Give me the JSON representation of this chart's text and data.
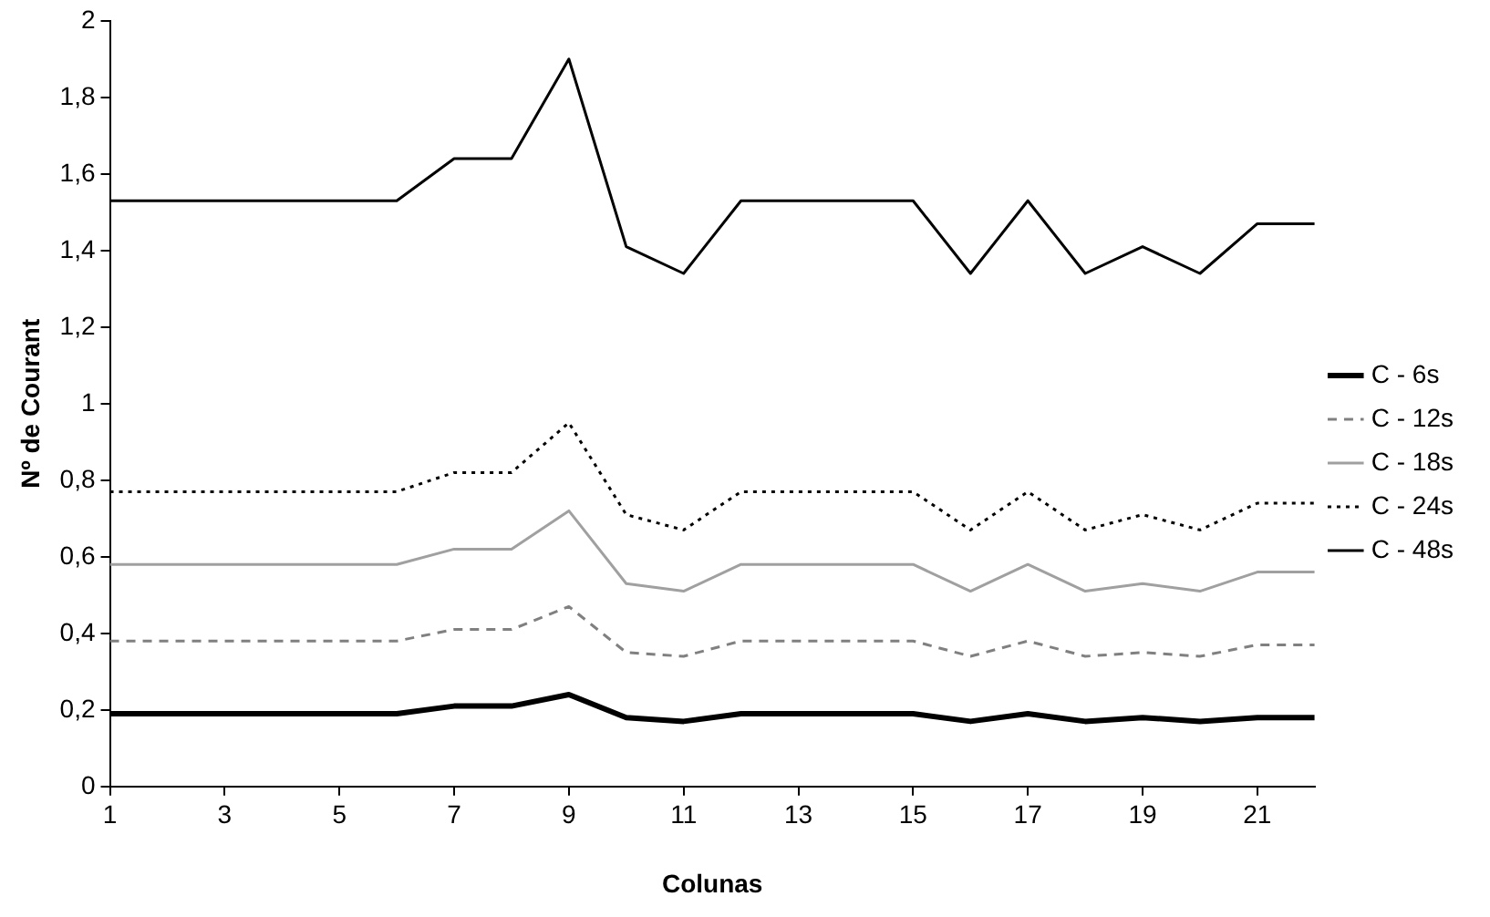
{
  "chart_data": {
    "type": "line",
    "xlabel": "Colunas",
    "ylabel": "Nº de Courant",
    "x": [
      1,
      2,
      3,
      4,
      5,
      6,
      7,
      8,
      9,
      10,
      11,
      12,
      13,
      14,
      15,
      16,
      17,
      18,
      19,
      20,
      21,
      22
    ],
    "xlim": [
      1,
      22
    ],
    "xticks": [
      1,
      3,
      5,
      7,
      9,
      11,
      13,
      15,
      17,
      19,
      21
    ],
    "ylim": [
      0,
      2
    ],
    "yticks": [
      0,
      {
        "value": 0.2,
        "label": "0,2"
      },
      {
        "value": 0.4,
        "label": "0,4"
      },
      {
        "value": 0.6,
        "label": "0,6"
      },
      {
        "value": 0.8,
        "label": "0,8"
      },
      1,
      {
        "value": 1.2,
        "label": "1,2"
      },
      {
        "value": 1.4,
        "label": "1,4"
      },
      {
        "value": 1.6,
        "label": "1,6"
      },
      {
        "value": 1.8,
        "label": "1,8"
      },
      2
    ],
    "grid": false,
    "legend": "right",
    "marker": "none",
    "series": [
      {
        "name": "C - 6s",
        "color": "#000000",
        "line_style": "solid",
        "values": [
          0.19,
          0.19,
          0.19,
          0.19,
          0.19,
          0.19,
          0.21,
          0.21,
          0.24,
          0.18,
          0.17,
          0.19,
          0.19,
          0.19,
          0.19,
          0.17,
          0.19,
          0.17,
          0.18,
          0.17,
          0.18,
          0.18
        ]
      },
      {
        "name": "C - 12s",
        "color": "#808080",
        "line_style": "dashed",
        "values": [
          0.38,
          0.38,
          0.38,
          0.38,
          0.38,
          0.38,
          0.41,
          0.41,
          0.47,
          0.35,
          0.34,
          0.38,
          0.38,
          0.38,
          0.38,
          0.34,
          0.38,
          0.34,
          0.35,
          0.34,
          0.37,
          0.37
        ]
      },
      {
        "name": "C - 18s",
        "color": "#a0a0a0",
        "line_style": "solid",
        "values": [
          0.58,
          0.58,
          0.58,
          0.58,
          0.58,
          0.58,
          0.62,
          0.62,
          0.72,
          0.53,
          0.51,
          0.58,
          0.58,
          0.58,
          0.58,
          0.51,
          0.58,
          0.51,
          0.53,
          0.51,
          0.56,
          0.56
        ]
      },
      {
        "name": "C - 24s",
        "color": "#000000",
        "line_style": "dotted",
        "values": [
          0.77,
          0.77,
          0.77,
          0.77,
          0.77,
          0.77,
          0.82,
          0.82,
          0.95,
          0.71,
          0.67,
          0.77,
          0.77,
          0.77,
          0.77,
          0.67,
          0.77,
          0.67,
          0.71,
          0.67,
          0.74,
          0.74
        ]
      },
      {
        "name": "C - 48s",
        "color": "#000000",
        "line_style": "solid",
        "values": [
          1.53,
          1.53,
          1.53,
          1.53,
          1.53,
          1.53,
          1.64,
          1.64,
          1.9,
          1.41,
          1.34,
          1.53,
          1.53,
          1.53,
          1.53,
          1.34,
          1.53,
          1.34,
          1.41,
          1.34,
          1.47,
          1.47
        ]
      }
    ]
  }
}
